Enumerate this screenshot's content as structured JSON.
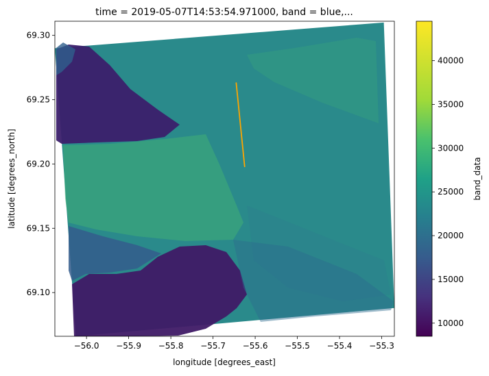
{
  "chart_data": {
    "type": "heatmap",
    "title": "time = 2019-05-07T14:53:54.971000, band = blue,...",
    "xlabel": "longitude [degrees_east]",
    "ylabel": "latitude [degrees_north]",
    "xlim": [
      -56.075,
      -55.27
    ],
    "ylim": [
      69.066,
      69.311
    ],
    "xticks": [
      -56.0,
      -55.9,
      -55.8,
      -55.7,
      -55.6,
      -55.5,
      -55.4,
      -55.3
    ],
    "xtick_labels": [
      "−56.0",
      "−55.9",
      "−55.8",
      "−55.7",
      "−55.6",
      "−55.5",
      "−55.4",
      "−55.3"
    ],
    "yticks": [
      69.1,
      69.15,
      69.2,
      69.25,
      69.3
    ],
    "ytick_labels": [
      "69.10",
      "69.15",
      "69.20",
      "69.25",
      "69.30"
    ],
    "colorbar": {
      "label": "band_data",
      "colormap": "viridis",
      "vmin": 8500,
      "vmax": 44500,
      "ticks": [
        10000,
        15000,
        20000,
        25000,
        30000,
        35000,
        40000
      ],
      "tick_labels": [
        "10000",
        "15000",
        "20000",
        "25000",
        "30000",
        "35000",
        "40000"
      ]
    },
    "raster_footprint": {
      "corners_lon_lat": [
        [
          -56.075,
          69.29
        ],
        [
          -55.295,
          69.31
        ],
        [
          -55.27,
          69.088
        ],
        [
          -56.025,
          69.066
        ]
      ],
      "nodata_color": "#ffffff"
    },
    "overlay_line": {
      "color": "#ffa500",
      "points": [
        [
          -55.645,
          69.263
        ],
        [
          -55.625,
          69.198
        ]
      ]
    },
    "grid": false
  }
}
